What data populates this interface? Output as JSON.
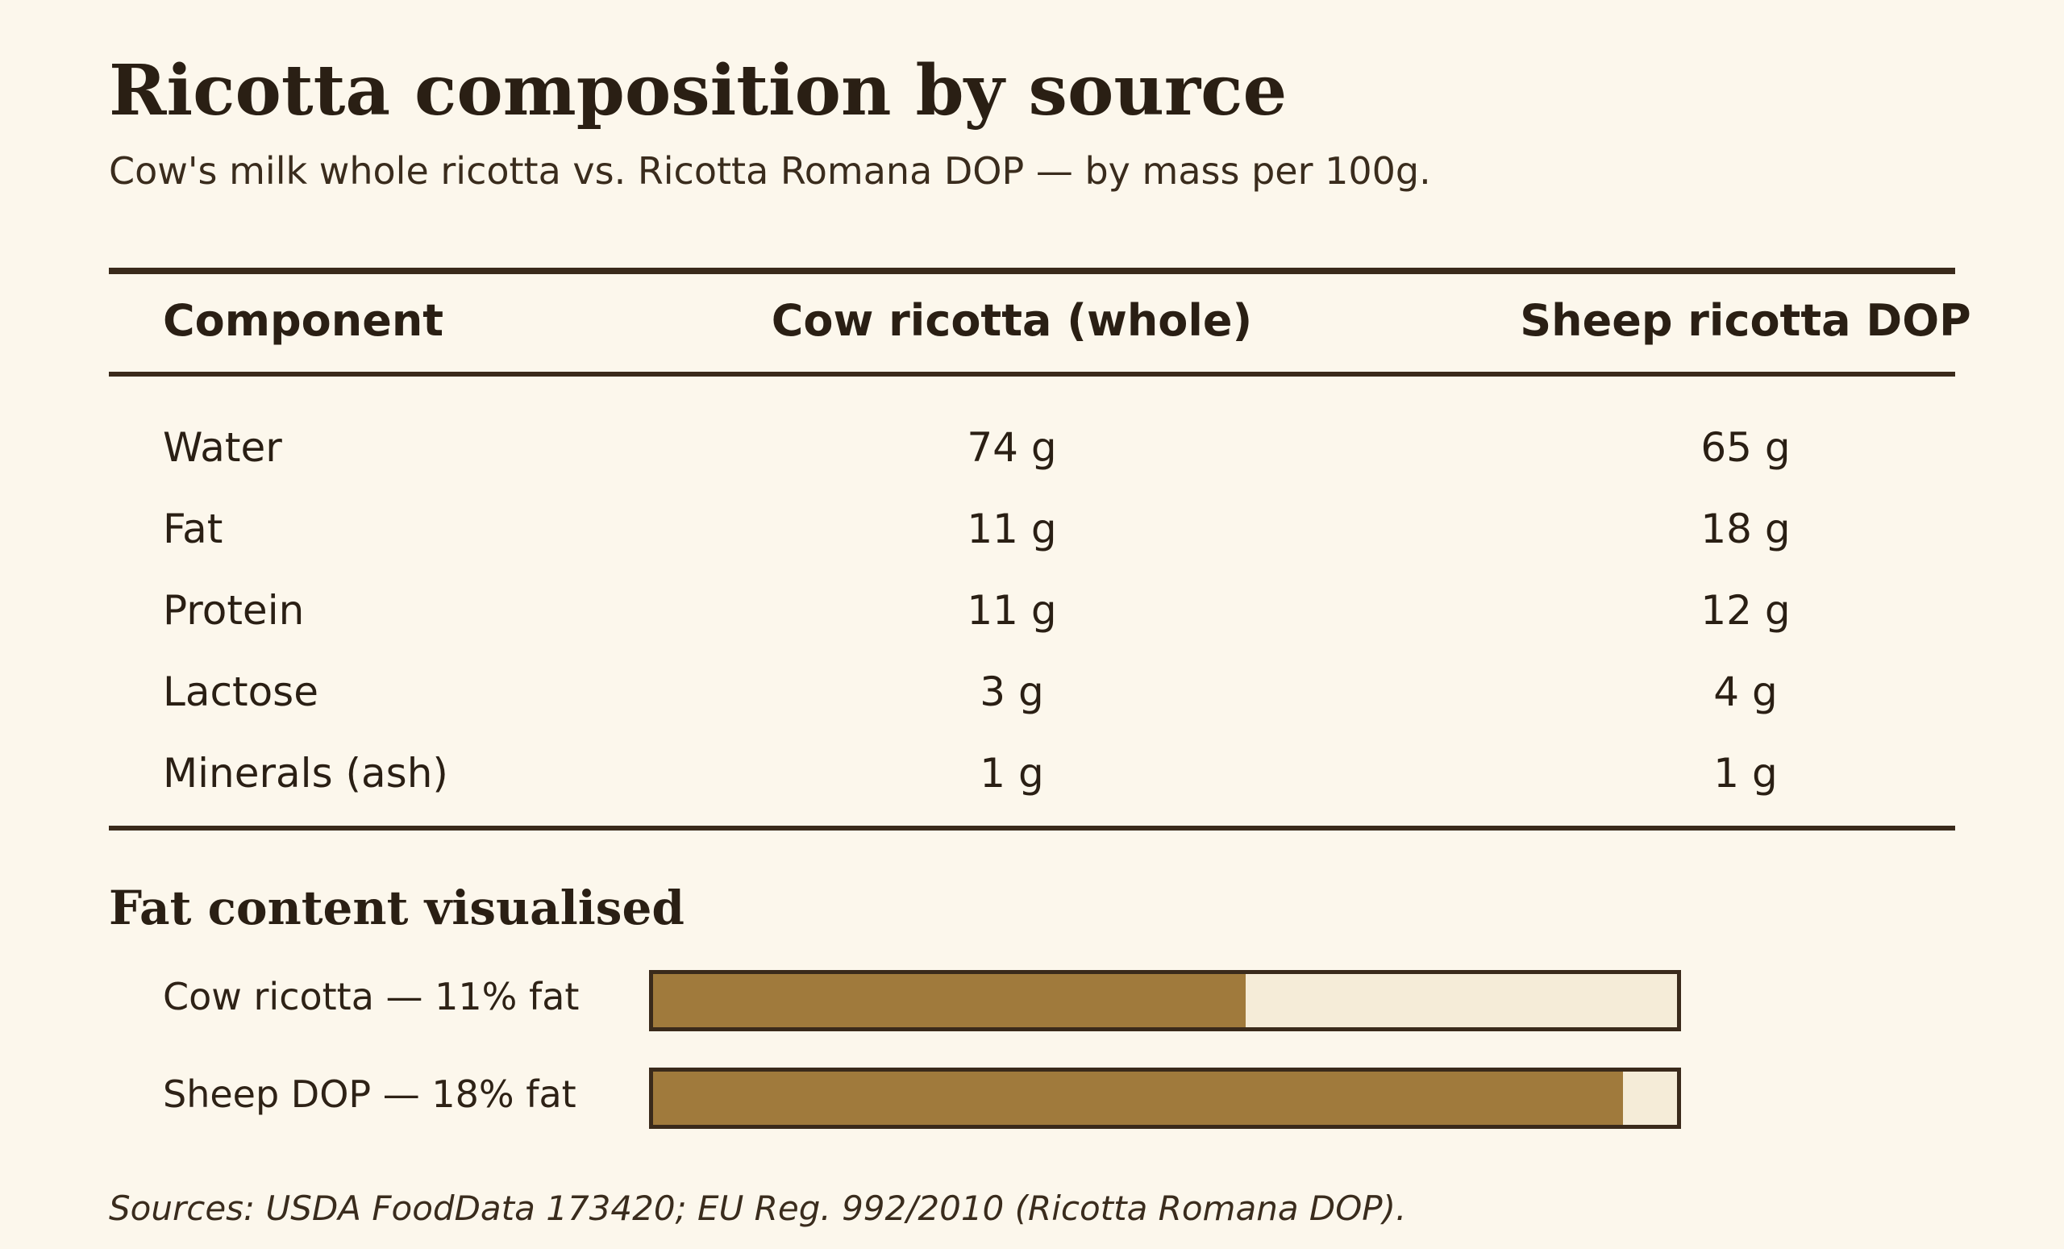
{
  "title": "Ricotta composition by source",
  "subtitle": "Cow's milk whole ricotta vs. Ricotta Romana DOP — by mass per 100g.",
  "table": {
    "headers": [
      "Component",
      "Cow ricotta (whole)",
      "Sheep ricotta DOP"
    ],
    "rows": [
      [
        "Water",
        "74 g",
        "65 g"
      ],
      [
        "Fat",
        "11 g",
        "18 g"
      ],
      [
        "Protein",
        "11 g",
        "12 g"
      ],
      [
        "Lactose",
        "3 g",
        "4 g"
      ],
      [
        "Minerals (ash)",
        "1 g",
        "1 g"
      ]
    ]
  },
  "fat_section": {
    "title": "Fat content visualised",
    "bars": [
      {
        "label": "Cow ricotta — 11% fat",
        "value": 11,
        "max": 19
      },
      {
        "label": "Sheep DOP — 18% fat",
        "value": 18,
        "max": 19
      }
    ]
  },
  "colors": {
    "background": "#fcf7ec",
    "text": "#2a1f14",
    "rule": "#3a2a1b",
    "bar_fill": "#a07a3c",
    "bar_track": "#f5ecd8"
  },
  "sources": "Sources: USDA FoodData 173420; EU Reg. 992/2010 (Ricotta Romana DOP)."
}
